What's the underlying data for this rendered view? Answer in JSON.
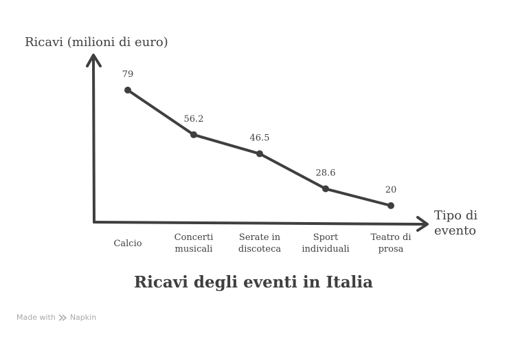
{
  "chart_data": {
    "type": "line",
    "title": "Ricavi degli eventi in Italia",
    "xlabel": [
      "Tipo di",
      "evento"
    ],
    "ylabel": "Ricavi (milioni di euro)",
    "categories": [
      [
        "Calcio"
      ],
      [
        "Concerti",
        "musicali"
      ],
      [
        "Serate in",
        "discoteca"
      ],
      [
        "Sport",
        "individuali"
      ],
      [
        "Teatro di",
        "prosa"
      ]
    ],
    "values": [
      79,
      56.2,
      46.5,
      28.6,
      20
    ],
    "value_labels": [
      "79",
      "56.2",
      "46.5",
      "28.6",
      "20"
    ],
    "ylim": [
      0,
      100
    ],
    "grid": false,
    "line_color": "#3f3f3f"
  },
  "watermark": {
    "prefix": "Made with",
    "brand": "Napkin",
    "icon": "napkin-logo-icon"
  }
}
